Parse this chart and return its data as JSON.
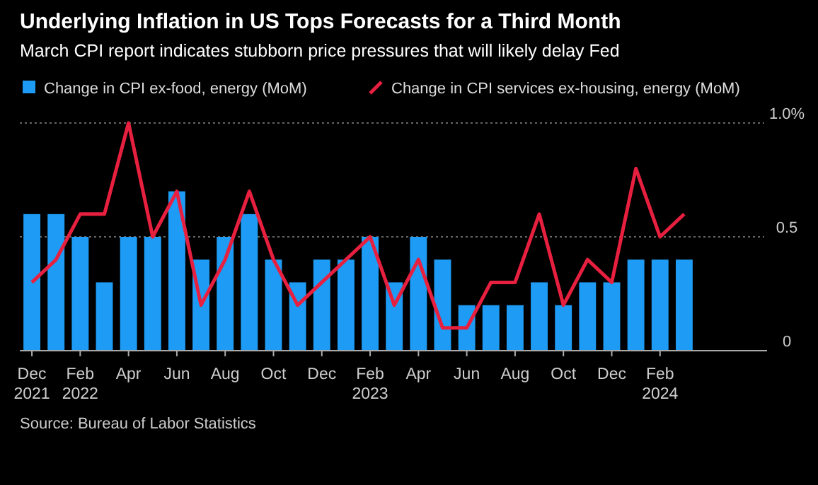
{
  "chart_data": {
    "type": "bar",
    "title": "Underlying Inflation in US Tops Forecasts for a Third Month",
    "subtitle": "March CPI report indicates stubborn price pressures that will likely delay Fed",
    "categories": [
      "Dec\n2021",
      null,
      "Feb\n2022",
      null,
      "Apr",
      null,
      "Jun",
      null,
      "Aug",
      null,
      "Oct",
      null,
      "Dec",
      null,
      "Feb\n2023",
      null,
      "Apr",
      null,
      "Jun",
      null,
      "Aug",
      null,
      "Oct",
      null,
      "Dec",
      null,
      "Feb\n2024",
      null
    ],
    "series": [
      {
        "name": "Change in CPI ex-food, energy (MoM)",
        "color": "#1e9cf5",
        "values": [
          0.6,
          0.6,
          0.5,
          0.3,
          0.5,
          0.5,
          0.7,
          0.4,
          0.5,
          0.6,
          0.4,
          0.3,
          0.4,
          0.4,
          0.5,
          0.3,
          0.5,
          0.4,
          0.2,
          0.2,
          0.2,
          0.3,
          0.2,
          0.3,
          0.3,
          0.4,
          0.4,
          0.4
        ]
      },
      {
        "name": "Change in CPI services ex-housing, energy (MoM)",
        "type": "line",
        "color": "#e8203f",
        "values": [
          0.3,
          0.4,
          0.6,
          0.6,
          1.0,
          0.5,
          0.7,
          0.2,
          0.4,
          0.7,
          0.4,
          0.2,
          0.3,
          0.4,
          0.5,
          0.2,
          0.4,
          0.1,
          0.1,
          0.3,
          0.3,
          0.6,
          0.2,
          0.4,
          0.3,
          0.8,
          0.5,
          0.6
        ]
      }
    ],
    "ylim": [
      0,
      1
    ],
    "yticks": [
      0,
      0.5,
      {
        "value": 1,
        "label": "1.0%"
      }
    ],
    "grid": "y",
    "legend": "top left",
    "annotations": [
      "Source: Bureau of Labor Statistics"
    ]
  }
}
